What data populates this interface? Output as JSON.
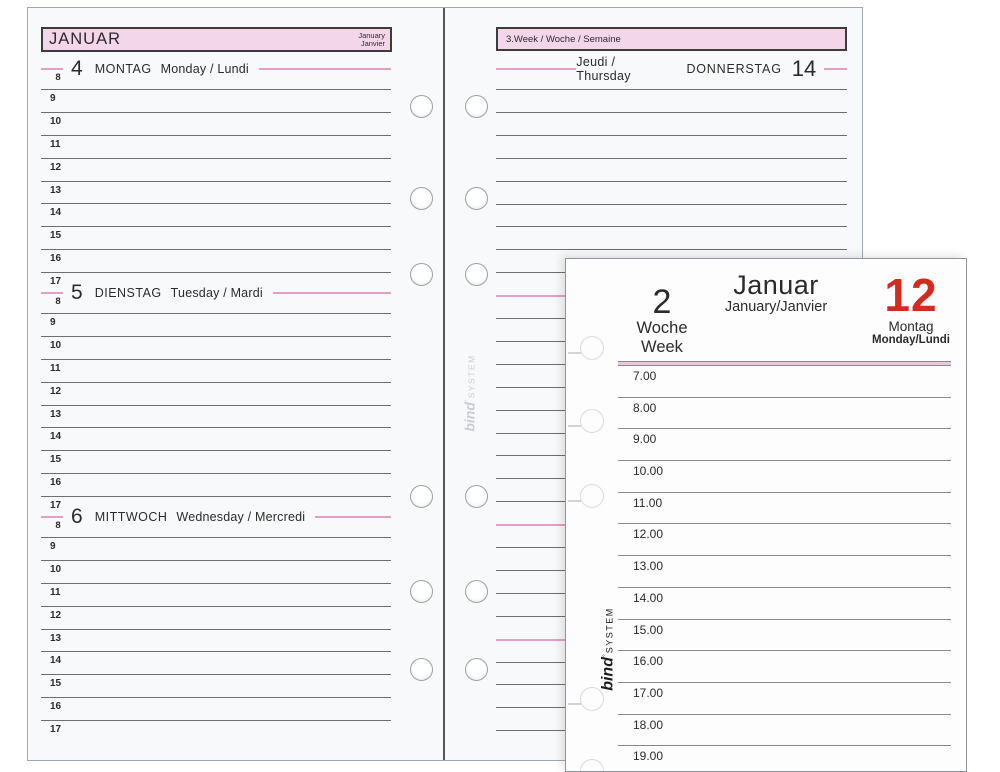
{
  "colors": {
    "pink_fill": "#f4d6ea",
    "pink_line": "#e29fc7",
    "rule_gray": "#6e6e6e",
    "date_red": "#d32b20",
    "text": "#2b2b2b",
    "logo_faint": "#c9cdd3"
  },
  "brand": {
    "name": "bind",
    "degree": "°",
    "suffix": "SYSTEM"
  },
  "left_page": {
    "month_box": {
      "title": "JANUAR",
      "sub1": "January",
      "sub2": "Janvier"
    },
    "days": [
      {
        "date": "4",
        "name_de": "MONTAG",
        "name_enfr": "Monday / Lundi",
        "start_hour": "8",
        "hours": [
          "9",
          "10",
          "11",
          "12",
          "13",
          "14",
          "15",
          "16",
          "17"
        ]
      },
      {
        "date": "5",
        "name_de": "DIENSTAG",
        "name_enfr": "Tuesday / Mardi",
        "start_hour": "8",
        "hours": [
          "9",
          "10",
          "11",
          "12",
          "13",
          "14",
          "15",
          "16",
          "17"
        ]
      },
      {
        "date": "6",
        "name_de": "MITTWOCH",
        "name_enfr": "Wednesday / Mercredi",
        "start_hour": "8",
        "hours": [
          "9",
          "10",
          "11",
          "12",
          "13",
          "14",
          "15",
          "16",
          "17"
        ]
      }
    ]
  },
  "right_page": {
    "week_box": "3.Week / Woche / Semaine",
    "day_title": {
      "enfr": "Jeudi / Thursday",
      "de": "DONNERSTAG",
      "date": "14"
    }
  },
  "overlay_page": {
    "week_number": "2",
    "week_de": "Woche",
    "week_en": "Week",
    "month": "Januar",
    "month_sub": "January/Janvier",
    "date": "12",
    "day_de": "Montag",
    "day_enfr": "Monday/Lundi",
    "times": [
      "7.00",
      "8.00",
      "9.00",
      "10.00",
      "11.00",
      "12.00",
      "13.00",
      "14.00",
      "15.00",
      "16.00",
      "17.00",
      "18.00",
      "19.00"
    ]
  }
}
